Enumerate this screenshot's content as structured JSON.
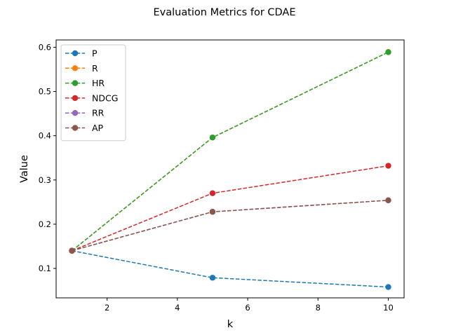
{
  "chart_data": {
    "type": "line",
    "title": "Evaluation Metrics for CDAE",
    "xlabel": "k",
    "ylabel": "Value",
    "x": [
      1,
      5,
      10
    ],
    "xlim": [
      0.55,
      10.45
    ],
    "ylim": [
      0.0335,
      0.6165
    ],
    "xticks": [
      2,
      4,
      6,
      8,
      10
    ],
    "yticks": [
      0.1,
      0.2,
      0.3,
      0.4,
      0.5,
      0.6
    ],
    "grid": false,
    "legend_position": "upper-left",
    "series": [
      {
        "name": "P",
        "color": "#1f77b4",
        "values": [
          0.14,
          0.079,
          0.058
        ]
      },
      {
        "name": "R",
        "color": "#ff7f0e",
        "values": [
          0.14,
          0.396,
          0.589
        ]
      },
      {
        "name": "HR",
        "color": "#2ca02c",
        "values": [
          0.14,
          0.396,
          0.589
        ]
      },
      {
        "name": "NDCG",
        "color": "#d62728",
        "values": [
          0.14,
          0.27,
          0.332
        ]
      },
      {
        "name": "RR",
        "color": "#9467bd",
        "values": [
          0.14,
          0.228,
          0.254
        ]
      },
      {
        "name": "AP",
        "color": "#8c564b",
        "values": [
          0.14,
          0.228,
          0.254
        ]
      }
    ]
  }
}
